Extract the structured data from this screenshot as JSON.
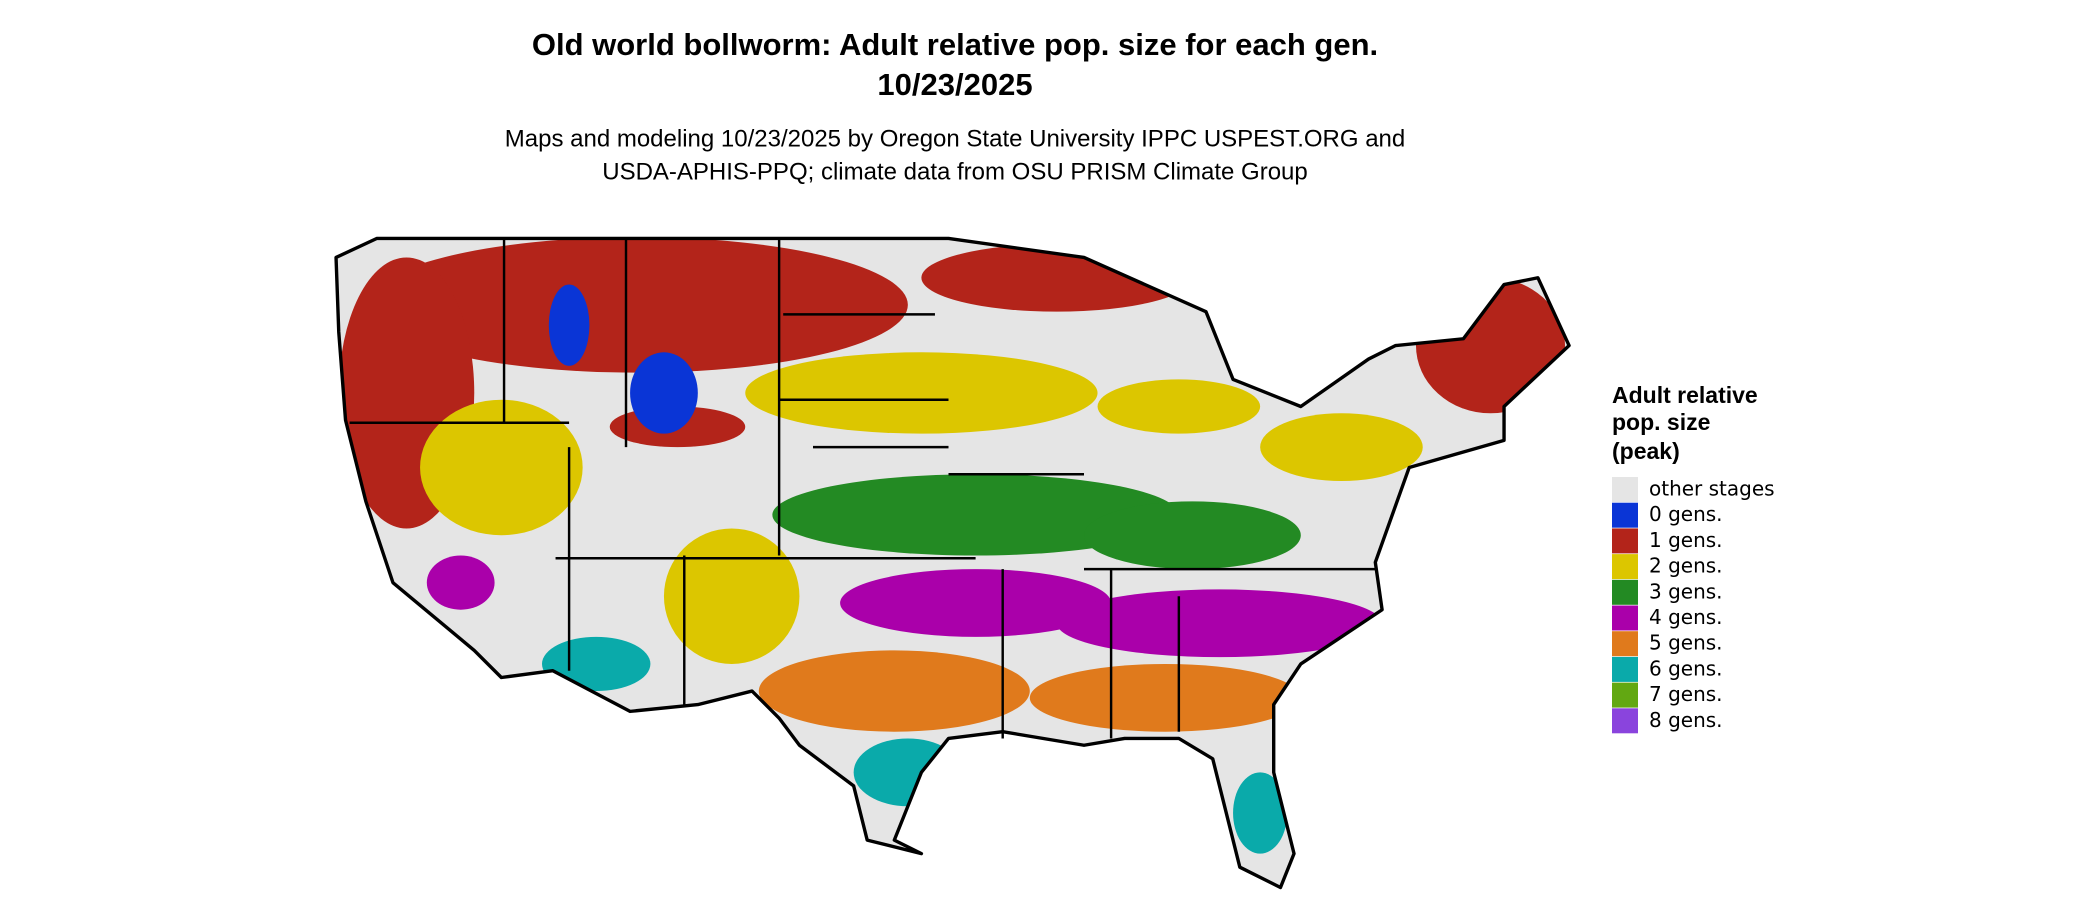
{
  "title": [
    "Old world bollworm: Adult relative pop. size for each gen.",
    "10/23/2025"
  ],
  "subtitle": [
    "Maps and modeling 10/23/2025 by Oregon State University IPPC USPEST.ORG and",
    "USDA-APHIS-PPQ; climate data from OSU PRISM Climate Group"
  ],
  "legend": {
    "title": [
      "Adult relative",
      "pop. size",
      "(peak)"
    ],
    "items": [
      {
        "label": "other stages",
        "color": "#e5e5e5"
      },
      {
        "label": "0 gens.",
        "color": "#0a35d6"
      },
      {
        "label": "1 gens.",
        "color": "#b3241a"
      },
      {
        "label": "2 gens.",
        "color": "#dcc600"
      },
      {
        "label": "3 gens.",
        "color": "#238a23"
      },
      {
        "label": "4 gens.",
        "color": "#aa00aa"
      },
      {
        "label": "5 gens.",
        "color": "#e07a1c"
      },
      {
        "label": "6 gens.",
        "color": "#0aaaaa"
      },
      {
        "label": "7 gens.",
        "color": "#62a812"
      },
      {
        "label": "8 gens.",
        "color": "#8a44dd"
      }
    ]
  }
}
